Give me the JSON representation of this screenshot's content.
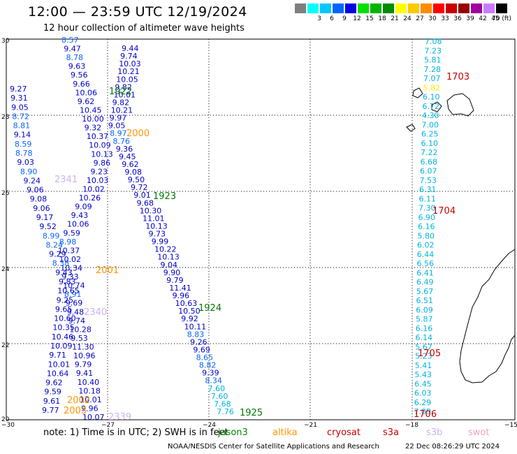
{
  "header": {
    "title": "12:00 — 23:59 UTC 12/19/2024",
    "subtitle": "12 hour collection of altimeter wave heights"
  },
  "legend": {
    "swatches": [
      {
        "color": "#7f7f7f",
        "label": ""
      },
      {
        "color": "#00ffff",
        "label": "3"
      },
      {
        "color": "#00c8ff",
        "label": "6"
      },
      {
        "color": "#0066ff",
        "label": "9"
      },
      {
        "color": "#0000e6",
        "label": "12"
      },
      {
        "color": "#00e100",
        "label": "15"
      },
      {
        "color": "#00b400",
        "label": "18"
      },
      {
        "color": "#008c00",
        "label": "21"
      },
      {
        "color": "#ffff00",
        "label": "24"
      },
      {
        "color": "#ffc800",
        "label": "27"
      },
      {
        "color": "#ff8c00",
        "label": "30"
      },
      {
        "color": "#ff0000",
        "label": "33"
      },
      {
        "color": "#c80000",
        "label": "36"
      },
      {
        "color": "#960000",
        "label": "39"
      },
      {
        "color": "#a000a0",
        "label": "42"
      },
      {
        "color": "#c87dff",
        "label": "45"
      },
      {
        "color": "#000000",
        "label": "70 (ft)"
      }
    ]
  },
  "map": {
    "lat_labels": [
      "30",
      "28",
      "26",
      "24",
      "22",
      "20"
    ],
    "lon_labels": [
      "−30",
      "−27",
      "−24",
      "−21",
      "−18",
      "−15"
    ]
  },
  "colors": {
    "dark": "#0000c8",
    "mid": "#0a64ff",
    "light": "#00b4dc",
    "green": "#007800",
    "orange": "#ff9600",
    "red": "#c80000",
    "purple": "#c8b4f0"
  },
  "tracks": {
    "west": {
      "labels": [
        {
          "t": "8.57",
          "c": "mid"
        },
        {
          "t": "9.47",
          "c": "dark"
        },
        {
          "t": "8.78",
          "c": "mid"
        },
        {
          "t": "9.63",
          "c": "dark"
        },
        {
          "t": "9.56",
          "c": "dark"
        },
        {
          "t": "9.66",
          "c": "dark"
        },
        {
          "t": "10.06",
          "c": "dark"
        },
        {
          "t": "9.62",
          "c": "dark"
        },
        {
          "t": "10.45",
          "c": "dark"
        },
        {
          "t": "10.00",
          "c": "dark"
        },
        {
          "t": "9.32",
          "c": "dark"
        },
        {
          "t": "10.37",
          "c": "dark"
        },
        {
          "t": "10.09",
          "c": "dark"
        },
        {
          "t": "10.13",
          "c": "dark"
        },
        {
          "t": "9.86",
          "c": "dark"
        },
        {
          "t": "9.23",
          "c": "dark"
        },
        {
          "t": "10.03",
          "c": "dark"
        },
        {
          "t": "10.02",
          "c": "dark"
        },
        {
          "t": "10.26",
          "c": "dark"
        },
        {
          "t": "9.09",
          "c": "dark"
        },
        {
          "t": "9.43",
          "c": "dark"
        },
        {
          "t": "10.06",
          "c": "dark"
        },
        {
          "t": "9.59",
          "c": "dark"
        },
        {
          "t": "8.98",
          "c": "mid"
        },
        {
          "t": "10.37",
          "c": "dark"
        },
        {
          "t": "10.02",
          "c": "dark"
        },
        {
          "t": "10.34",
          "c": "dark"
        },
        {
          "t": "9.33",
          "c": "dark"
        },
        {
          "t": "10.74",
          "c": "dark"
        },
        {
          "t": "8.91",
          "c": "mid"
        },
        {
          "t": "9.69",
          "c": "dark"
        },
        {
          "t": "9.48",
          "c": "dark"
        },
        {
          "t": "9.74",
          "c": "dark"
        },
        {
          "t": "10.28",
          "c": "dark"
        },
        {
          "t": "9.53",
          "c": "dark"
        },
        {
          "t": "11.30",
          "c": "dark"
        },
        {
          "t": "10.96",
          "c": "dark"
        },
        {
          "t": "9.79",
          "c": "dark"
        },
        {
          "t": "9.41",
          "c": "dark"
        },
        {
          "t": "10.40",
          "c": "dark"
        },
        {
          "t": "10.18",
          "c": "dark"
        },
        {
          "t": "10.01",
          "c": "dark"
        },
        {
          "t": "9.96",
          "c": "dark"
        },
        {
          "t": "10.07",
          "c": "dark"
        }
      ]
    },
    "west2": {
      "labels": [
        {
          "t": "9.27",
          "c": "dark"
        },
        {
          "t": "9.31",
          "c": "dark"
        },
        {
          "t": "9.05",
          "c": "dark"
        },
        {
          "t": "8.72",
          "c": "mid"
        },
        {
          "t": "8.81",
          "c": "mid"
        },
        {
          "t": "9.14",
          "c": "dark"
        },
        {
          "t": "8.59",
          "c": "mid"
        },
        {
          "t": "8.78",
          "c": "mid"
        },
        {
          "t": "9.03",
          "c": "dark"
        },
        {
          "t": "8.90",
          "c": "mid"
        },
        {
          "t": "9.24",
          "c": "dark"
        },
        {
          "t": "9.06",
          "c": "dark"
        },
        {
          "t": "9.08",
          "c": "dark"
        },
        {
          "t": "9.06",
          "c": "dark"
        },
        {
          "t": "9.17",
          "c": "dark"
        },
        {
          "t": "9.52",
          "c": "dark"
        },
        {
          "t": "8.99",
          "c": "mid"
        },
        {
          "t": "8.24",
          "c": "mid"
        },
        {
          "t": "9.29",
          "c": "dark"
        },
        {
          "t": "8.38",
          "c": "mid"
        },
        {
          "t": "9.43",
          "c": "dark"
        },
        {
          "t": "9.83",
          "c": "dark"
        },
        {
          "t": "10.65",
          "c": "dark"
        },
        {
          "t": "9.25",
          "c": "dark"
        },
        {
          "t": "9.65",
          "c": "dark"
        },
        {
          "t": "10.60",
          "c": "dark"
        },
        {
          "t": "10.35",
          "c": "dark"
        },
        {
          "t": "10.46",
          "c": "dark"
        },
        {
          "t": "10.09",
          "c": "dark"
        },
        {
          "t": "9.71",
          "c": "dark"
        },
        {
          "t": "10.01",
          "c": "dark"
        },
        {
          "t": "10.64",
          "c": "dark"
        },
        {
          "t": "9.62",
          "c": "dark"
        },
        {
          "t": "9.59",
          "c": "dark"
        },
        {
          "t": "9.61",
          "c": "dark"
        },
        {
          "t": "9.77",
          "c": "dark"
        }
      ]
    },
    "middle": {
      "labels": [
        {
          "t": "9.44",
          "c": "dark"
        },
        {
          "t": "9.74",
          "c": "dark"
        },
        {
          "t": "10.03",
          "c": "dark"
        },
        {
          "t": "10.21",
          "c": "dark"
        },
        {
          "t": "10.05",
          "c": "dark"
        },
        {
          "t": "9.82",
          "c": "dark"
        },
        {
          "t": "10.01",
          "c": "dark"
        },
        {
          "t": "9.82",
          "c": "dark"
        },
        {
          "t": "10.21",
          "c": "dark"
        },
        {
          "t": "9.97",
          "c": "dark"
        },
        {
          "t": "9.05",
          "c": "dark"
        },
        {
          "t": "8.97",
          "c": "mid"
        },
        {
          "t": "8.76",
          "c": "mid"
        },
        {
          "t": "9.36",
          "c": "dark"
        },
        {
          "t": "9.45",
          "c": "dark"
        },
        {
          "t": "9.62",
          "c": "dark"
        },
        {
          "t": "9.08",
          "c": "dark"
        },
        {
          "t": "9.50",
          "c": "dark"
        },
        {
          "t": "9.72",
          "c": "dark"
        },
        {
          "t": "9.01",
          "c": "dark"
        },
        {
          "t": "9.68",
          "c": "dark"
        },
        {
          "t": "10.30",
          "c": "dark"
        },
        {
          "t": "11.01",
          "c": "dark"
        },
        {
          "t": "10.13",
          "c": "dark"
        },
        {
          "t": "9.73",
          "c": "dark"
        },
        {
          "t": "9.99",
          "c": "dark"
        },
        {
          "t": "10.22",
          "c": "dark"
        },
        {
          "t": "10.13",
          "c": "dark"
        },
        {
          "t": "9.04",
          "c": "dark"
        },
        {
          "t": "9.90",
          "c": "dark"
        },
        {
          "t": "9.79",
          "c": "dark"
        },
        {
          "t": "11.41",
          "c": "dark"
        },
        {
          "t": "9.96",
          "c": "dark"
        },
        {
          "t": "10.63",
          "c": "dark"
        },
        {
          "t": "10.50",
          "c": "dark"
        },
        {
          "t": "9.92",
          "c": "dark"
        },
        {
          "t": "10.11",
          "c": "dark"
        },
        {
          "t": "8.83",
          "c": "mid"
        },
        {
          "t": "9.26",
          "c": "dark"
        },
        {
          "t": "9.69",
          "c": "dark"
        },
        {
          "t": "8.65",
          "c": "mid"
        },
        {
          "t": "8.82",
          "c": "mid"
        },
        {
          "t": "9.39",
          "c": "dark"
        },
        {
          "t": "8.34",
          "c": "mid"
        },
        {
          "t": "7.60",
          "c": "light"
        },
        {
          "t": "7.60",
          "c": "light"
        },
        {
          "t": "7.68",
          "c": "light"
        },
        {
          "t": "7.76",
          "c": "light"
        }
      ]
    },
    "east": {
      "labels": [
        {
          "t": "7.08",
          "c": "light"
        },
        {
          "t": "7.23",
          "c": "light"
        },
        {
          "t": "5.81",
          "c": "light"
        },
        {
          "t": "7.28",
          "c": "light"
        },
        {
          "t": "7.07",
          "c": "light"
        },
        {
          "t": "5.82",
          "c": "yellow"
        },
        {
          "t": "6.10",
          "c": "light"
        },
        {
          "t": "6.72",
          "c": "light"
        },
        {
          "t": "4.30",
          "c": "light"
        },
        {
          "t": "7.00",
          "c": "light"
        },
        {
          "t": "6.25",
          "c": "light"
        },
        {
          "t": "6.10",
          "c": "light"
        },
        {
          "t": "7.22",
          "c": "light"
        },
        {
          "t": "6.68",
          "c": "light"
        },
        {
          "t": "6.07",
          "c": "light"
        },
        {
          "t": "7.53",
          "c": "light"
        },
        {
          "t": "6.31",
          "c": "light"
        },
        {
          "t": "6.11",
          "c": "light"
        },
        {
          "t": "7.30",
          "c": "light"
        },
        {
          "t": "6.90",
          "c": "light"
        },
        {
          "t": "6.16",
          "c": "light"
        },
        {
          "t": "5.80",
          "c": "light"
        },
        {
          "t": "6.02",
          "c": "light"
        },
        {
          "t": "6.44",
          "c": "light"
        },
        {
          "t": "6.56",
          "c": "light"
        },
        {
          "t": "6.41",
          "c": "light"
        },
        {
          "t": "6.49",
          "c": "light"
        },
        {
          "t": "5.67",
          "c": "light"
        },
        {
          "t": "6.51",
          "c": "light"
        },
        {
          "t": "6.09",
          "c": "light"
        },
        {
          "t": "5.87",
          "c": "light"
        },
        {
          "t": "6.16",
          "c": "light"
        },
        {
          "t": "6.14",
          "c": "light"
        },
        {
          "t": "5.67",
          "c": "light"
        },
        {
          "t": "5.23",
          "c": "light"
        },
        {
          "t": "5.41",
          "c": "light"
        },
        {
          "t": "5.43",
          "c": "light"
        },
        {
          "t": "6.45",
          "c": "light"
        },
        {
          "t": "6.03",
          "c": "light"
        },
        {
          "t": "6.29",
          "c": "light"
        },
        {
          "t": "7.09",
          "c": "light"
        }
      ]
    },
    "time_labels": [
      {
        "t": "1922",
        "c": "green"
      },
      {
        "t": "2000",
        "c": "orange"
      },
      {
        "t": "1923",
        "c": "green"
      },
      {
        "t": "2001",
        "c": "orange"
      },
      {
        "t": "1924",
        "c": "green"
      },
      {
        "t": "2002",
        "c": "orange"
      },
      {
        "t": "2003",
        "c": "orange"
      },
      {
        "t": "1925",
        "c": "green"
      },
      {
        "t": "2341",
        "c": "purple"
      },
      {
        "t": "2340",
        "c": "purple"
      },
      {
        "t": "2339",
        "c": "purple"
      },
      {
        "t": "1703",
        "c": "red"
      },
      {
        "t": "1704",
        "c": "red"
      },
      {
        "t": "1705",
        "c": "red"
      },
      {
        "t": "1706",
        "c": "red"
      }
    ]
  },
  "footer": {
    "note": "note: 1) Time is in UTC; 2) SWH is in feet",
    "satellites": [
      {
        "name": "jason3",
        "color": "#008c00"
      },
      {
        "name": "altika",
        "color": "#ff9600"
      },
      {
        "name": "cryosat",
        "color": "#c80000"
      },
      {
        "name": "s3a",
        "color": "#c80000"
      },
      {
        "name": "s3b",
        "color": "#c8b4f0"
      },
      {
        "name": "swot",
        "color": "#f0a0c8"
      }
    ],
    "credit": "NOAA/NESDIS Center for Satellite Applications and Research",
    "timestamp": "22 Dec 08:26:29 UTC 2024"
  }
}
